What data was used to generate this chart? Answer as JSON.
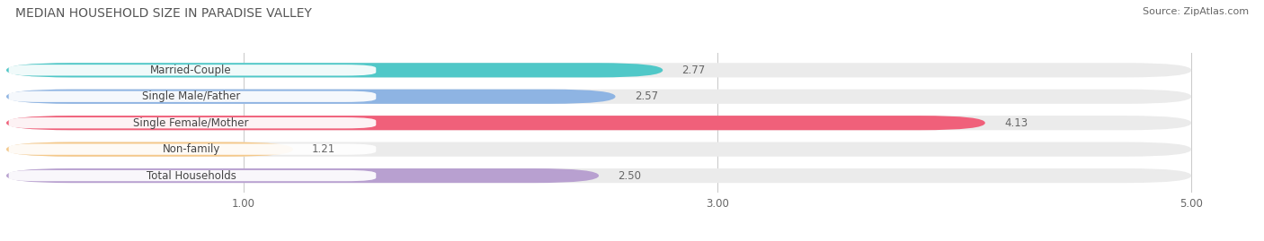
{
  "title": "MEDIAN HOUSEHOLD SIZE IN PARADISE VALLEY",
  "source": "Source: ZipAtlas.com",
  "categories": [
    "Married-Couple",
    "Single Male/Father",
    "Single Female/Mother",
    "Non-family",
    "Total Households"
  ],
  "values": [
    2.77,
    2.57,
    4.13,
    1.21,
    2.5
  ],
  "bar_colors": [
    "#50C8C8",
    "#8EB4E3",
    "#F0607A",
    "#F5C98A",
    "#B8A0D0"
  ],
  "bar_bg_color": "#EBEBEB",
  "label_bg_color": "#FFFFFF",
  "xlim": [
    0,
    5.2
  ],
  "xmin": 0,
  "xmax": 5.0,
  "xticks": [
    1.0,
    3.0,
    5.0
  ],
  "background_color": "#FFFFFF",
  "label_fontsize": 8.5,
  "value_fontsize": 8.5,
  "title_fontsize": 10,
  "source_fontsize": 8,
  "bar_height": 0.55,
  "bar_gap": 0.35
}
